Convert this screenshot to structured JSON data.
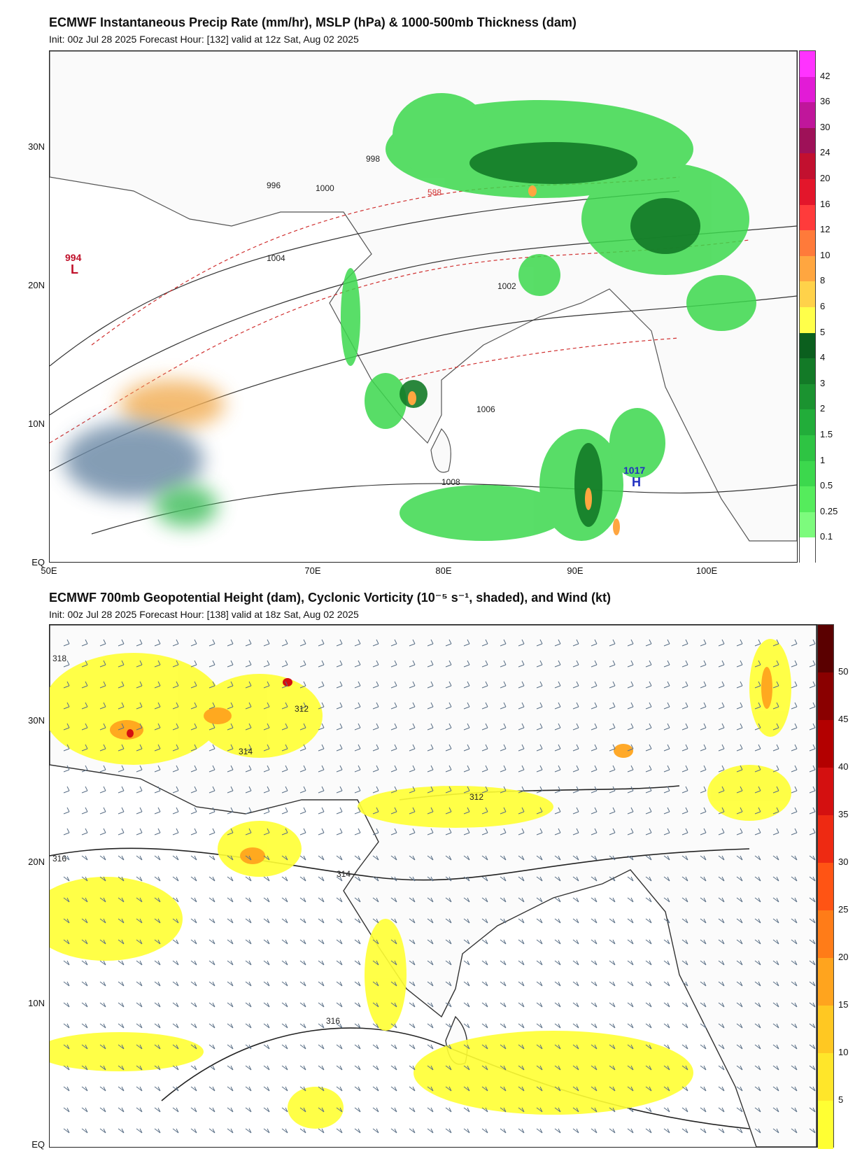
{
  "panel1": {
    "title": "ECMWF Instantaneous Precip Rate (mm/hr), MSLP (hPa) & 1000-500mb Thickness (dam)",
    "subtitle": "Init: 00z Jul 28 2025   Forecast Hour: [132]   valid at 12z Sat, Aug 02 2025",
    "lat_labels": [
      "30N",
      "20N",
      "10N",
      "EQ"
    ],
    "lon_labels": [
      "50E",
      "70E",
      "80E",
      "90E",
      "100E"
    ],
    "colorbar_ticks": [
      "42",
      "36",
      "30",
      "24",
      "20",
      "16",
      "12",
      "10",
      "8",
      "6",
      "5",
      "4",
      "3",
      "2",
      "1.5",
      "1",
      "0.5",
      "0.25",
      "0.1"
    ],
    "colorbar_colors": [
      "#ff33ff",
      "#e21bd6",
      "#c0169b",
      "#9e1158",
      "#c2102f",
      "#e3162b",
      "#ff3b3b",
      "#ff7a3a",
      "#ffa640",
      "#ffd24a",
      "#ffff4a",
      "#0b5f1e",
      "#137a27",
      "#1b9330",
      "#22ad3a",
      "#2ec443",
      "#3cd84d",
      "#55ec5c",
      "#7dfb7d",
      "#ffffff"
    ],
    "pressure_labels": [
      "994",
      "L",
      "1017",
      "H",
      "1004",
      "1002",
      "1000",
      "998",
      "996",
      "1006",
      "1008",
      "588"
    ]
  },
  "panel2": {
    "title": "ECMWF 700mb Geopotential Height (dam), Cyclonic Vorticity (10⁻⁵ s⁻¹, shaded), and Wind (kt)",
    "subtitle": "Init: 00z Jul 28 2025   Forecast Hour: [138]   valid at 18z Sat, Aug 02 2025",
    "lat_labels": [
      "30N",
      "20N",
      "10N",
      "EQ"
    ],
    "colorbar_ticks": [
      "50",
      "45",
      "40",
      "35",
      "30",
      "25",
      "20",
      "15",
      "10",
      "5"
    ],
    "colorbar_colors": [
      "#5a0000",
      "#8a0000",
      "#b30000",
      "#d41010",
      "#ee2a12",
      "#ff5414",
      "#ff7c18",
      "#ffa41e",
      "#ffc822",
      "#ffe62a",
      "#ffff33"
    ],
    "height_labels": [
      "318",
      "316",
      "314",
      "312"
    ]
  }
}
